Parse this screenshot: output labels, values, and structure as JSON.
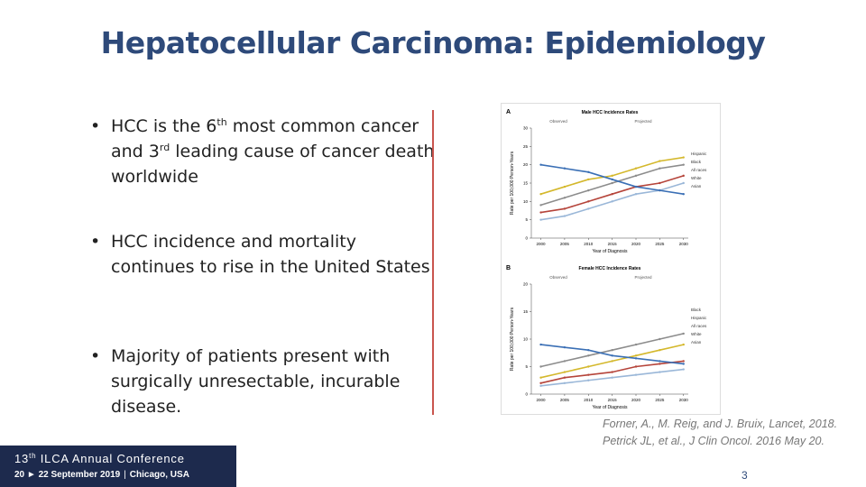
{
  "title": "Hepatocellular Carcinoma: Epidemiology",
  "bullets": [
    [
      "HCC is the 6",
      "th",
      " most common cancer and 3",
      "rd",
      " leading cause of cancer death worldwide"
    ],
    [
      "HCC incidence and mortality continues to rise in the United States"
    ],
    [
      "Majority of patients present with surgically unresectable, incurable disease."
    ]
  ],
  "figure": {
    "panels": [
      {
        "label": "A",
        "title": "Male HCC Incidence Rates",
        "observed": "Observed",
        "projected": "Projected",
        "ylabel": "Rate per 100,000 Person-Years",
        "xlabel": "Year of Diagnosis",
        "x": [
          2000,
          2005,
          2010,
          2015,
          2020,
          2025,
          2030
        ],
        "xlim": [
          1998,
          2031
        ],
        "xticks": [
          2000,
          2005,
          2010,
          2015,
          2020,
          2025,
          2030
        ],
        "ylim": [
          0,
          30
        ],
        "yticks": [
          0,
          5,
          10,
          15,
          20,
          25,
          30
        ],
        "series": [
          {
            "name": "Hispanic",
            "color": "#d4b82c",
            "values": [
              12,
              14,
              16,
              17,
              19,
              21,
              22
            ]
          },
          {
            "name": "Black",
            "color": "#8c8c8c",
            "values": [
              9,
              11,
              13,
              15,
              17,
              19,
              20
            ]
          },
          {
            "name": "All races",
            "color": "#b5443a",
            "values": [
              7,
              8,
              10,
              12,
              14,
              15,
              17
            ]
          },
          {
            "name": "White",
            "color": "#9ab7d8",
            "values": [
              5,
              6,
              8,
              10,
              12,
              13,
              15
            ]
          },
          {
            "name": "Asian",
            "color": "#3a6fb5",
            "values": [
              20,
              19,
              18,
              16,
              14,
              13,
              12
            ]
          }
        ]
      },
      {
        "label": "B",
        "title": "Female HCC Incidence Rates",
        "observed": "Observed",
        "projected": "Projected",
        "ylabel": "Rate per 100,000 Person-Years",
        "xlabel": "Year of Diagnosis",
        "x": [
          2000,
          2005,
          2010,
          2015,
          2020,
          2025,
          2030
        ],
        "xlim": [
          1998,
          2031
        ],
        "xticks": [
          2000,
          2005,
          2010,
          2015,
          2020,
          2025,
          2030
        ],
        "ylim": [
          0,
          20
        ],
        "yticks": [
          0,
          5,
          10,
          15,
          20
        ],
        "series": [
          {
            "name": "Black",
            "color": "#8c8c8c",
            "values": [
              5,
              6,
              7,
              8,
              9,
              10,
              11
            ]
          },
          {
            "name": "Hispanic",
            "color": "#d4b82c",
            "values": [
              3,
              4,
              5,
              6,
              7,
              8,
              9
            ]
          },
          {
            "name": "All races",
            "color": "#b5443a",
            "values": [
              2,
              3,
              3.5,
              4,
              5,
              5.5,
              6
            ]
          },
          {
            "name": "White",
            "color": "#9ab7d8",
            "values": [
              1.5,
              2,
              2.5,
              3,
              3.5,
              4,
              4.5
            ]
          },
          {
            "name": "Asian",
            "color": "#3a6fb5",
            "values": [
              9,
              8.5,
              8,
              7,
              6.5,
              6,
              5.5
            ]
          }
        ]
      }
    ]
  },
  "citations": [
    "Forner, A., M. Reig, and J. Bruix, Lancet, 2018.",
    "Petrick JL, et al., J Clin Oncol. 2016 May 20."
  ],
  "footer": {
    "line1": [
      "13",
      "th",
      " ILCA Annual Conference"
    ],
    "line2": [
      "20 ► 22 September 2019",
      "Chicago, USA"
    ]
  },
  "page_number": "3"
}
